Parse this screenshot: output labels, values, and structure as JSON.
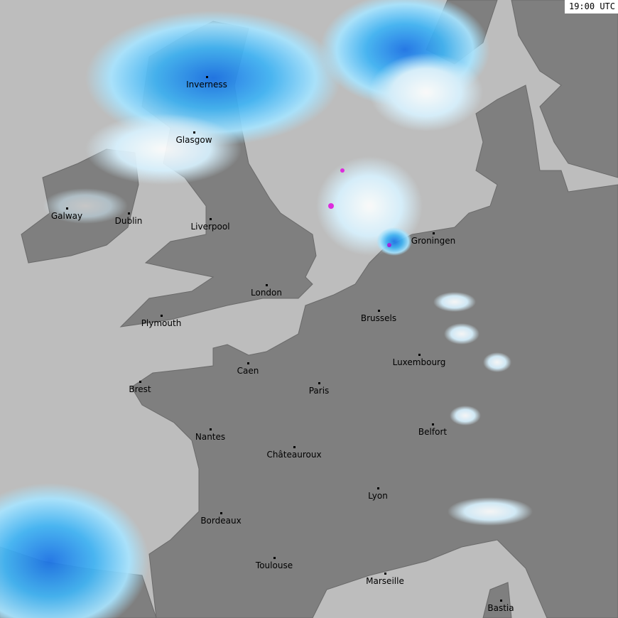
{
  "timestamp": "19:00 UTC",
  "colors": {
    "sea": "#bdbdbd",
    "land": "#7f7f7f",
    "border": "#6a6a6a",
    "radar_light": "#a8e4ff",
    "radar_mid": "#3fb4f5",
    "radar_strong": "#1a73e8",
    "radar_extreme": "#e020e0"
  },
  "cities": [
    {
      "name": "Inverness"
    },
    {
      "name": "Glasgow"
    },
    {
      "name": "Galway"
    },
    {
      "name": "Dublin"
    },
    {
      "name": "Liverpool"
    },
    {
      "name": "London"
    },
    {
      "name": "Plymouth"
    },
    {
      "name": "Brussels"
    },
    {
      "name": "Groningen"
    },
    {
      "name": "Luxembourg"
    },
    {
      "name": "Caen"
    },
    {
      "name": "Paris"
    },
    {
      "name": "Brest"
    },
    {
      "name": "Nantes"
    },
    {
      "name": "Châteauroux"
    },
    {
      "name": "Belfort"
    },
    {
      "name": "Lyon"
    },
    {
      "name": "Bordeaux"
    },
    {
      "name": "Toulouse"
    },
    {
      "name": "Marseille"
    },
    {
      "name": "Bastia"
    }
  ]
}
